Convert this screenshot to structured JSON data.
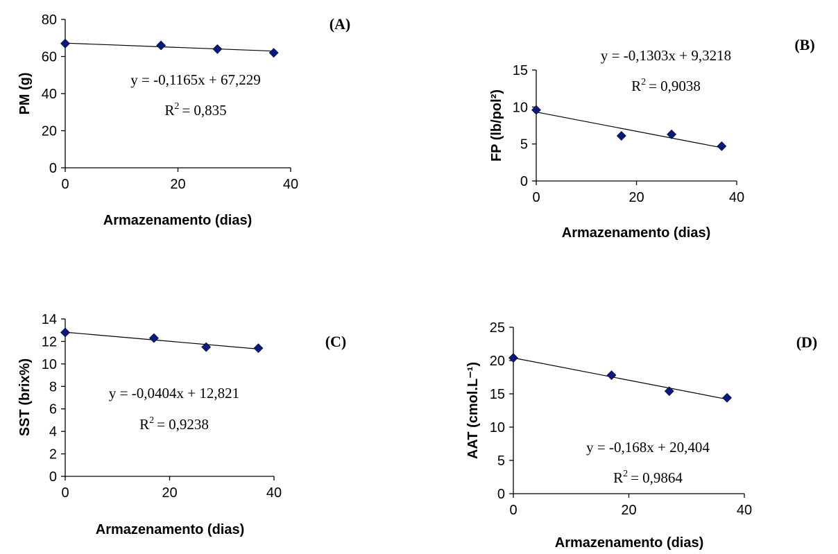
{
  "chart_data": [
    {
      "panel": "(A)",
      "type": "scatter",
      "x": [
        0,
        17,
        27,
        37
      ],
      "y": [
        67,
        66,
        64,
        62
      ],
      "xlim": [
        0,
        40
      ],
      "ylim": [
        0,
        80
      ],
      "xticks": [
        0,
        20,
        40
      ],
      "yticks": [
        0,
        20,
        40,
        60,
        80
      ],
      "xlabel": "Armazenamento (dias)",
      "ylabel": "PM (g)",
      "trend": {
        "slope": -0.1165,
        "intercept": 67.229
      },
      "equation": "y = -0,1165x + 67,229",
      "r2_text": "= 0,835",
      "grid": false,
      "legend": "none",
      "marker_color": "#0a1a78"
    },
    {
      "panel": "(B)",
      "type": "scatter",
      "x": [
        0,
        17,
        27,
        37
      ],
      "y": [
        9.6,
        6.1,
        6.3,
        4.7
      ],
      "xlim": [
        0,
        40
      ],
      "ylim": [
        0,
        15
      ],
      "xticks": [
        0,
        20,
        40
      ],
      "yticks": [
        0,
        5,
        10,
        15
      ],
      "xlabel": "Armazenamento (dias)",
      "ylabel": "FP (lb/pol²)",
      "trend": {
        "slope": -0.1303,
        "intercept": 9.3218
      },
      "equation": "y = -0,1303x + 9,3218",
      "r2_text": "= 0,9038",
      "grid": false,
      "legend": "none",
      "marker_color": "#0a1a78"
    },
    {
      "panel": "(C)",
      "type": "scatter",
      "x": [
        0,
        17,
        27,
        37
      ],
      "y": [
        12.8,
        12.3,
        11.5,
        11.4
      ],
      "xlim": [
        0,
        40
      ],
      "ylim": [
        0,
        14
      ],
      "xticks": [
        0,
        20,
        40
      ],
      "yticks": [
        0,
        2,
        4,
        6,
        8,
        10,
        12,
        14
      ],
      "xlabel": "Armazenamento (dias)",
      "ylabel": "SST (brix%)",
      "trend": {
        "slope": -0.0404,
        "intercept": 12.821
      },
      "equation": "y = -0,0404x + 12,821",
      "r2_text": "= 0,9238",
      "grid": false,
      "legend": "none",
      "marker_color": "#0a1a78"
    },
    {
      "panel": "(D)",
      "type": "scatter",
      "x": [
        0,
        17,
        27,
        37
      ],
      "y": [
        20.4,
        17.8,
        15.4,
        14.4
      ],
      "xlim": [
        0,
        40
      ],
      "ylim": [
        0,
        25
      ],
      "xticks": [
        0,
        20,
        40
      ],
      "yticks": [
        0,
        5,
        10,
        15,
        20,
        25
      ],
      "xlabel": "Armazenamento (dias)",
      "ylabel": "AAT (cmol.L⁻¹)",
      "trend": {
        "slope": -0.168,
        "intercept": 20.404
      },
      "equation": "y = -0,168x + 20,404",
      "r2_text": "= 0,9864",
      "grid": false,
      "legend": "none",
      "marker_color": "#0a1a78"
    }
  ]
}
